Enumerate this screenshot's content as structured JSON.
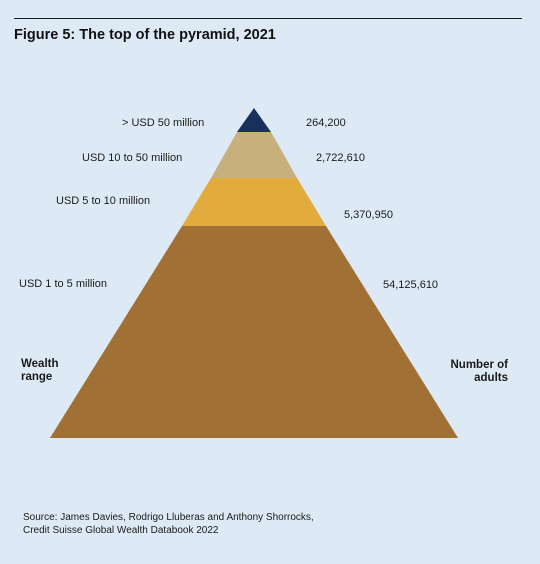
{
  "title": "Figure 5: The top of the pyramid, 2021",
  "tiers": [
    {
      "range": "> USD 50 million",
      "adults": "264,200",
      "color": "#17305e"
    },
    {
      "range": "USD 10 to 50 million",
      "adults": "2,722,610",
      "color": "#c8b07e"
    },
    {
      "range": "USD 5 to 10 million",
      "adults": "5,370,950",
      "color": "#e2ab3d"
    },
    {
      "range": "USD 1 to 5 million",
      "adults": "54,125,610",
      "color": "#a07034"
    }
  ],
  "left_axis": {
    "line1": "Wealth",
    "line2": "range"
  },
  "right_axis": {
    "line1": "Number of",
    "line2": "adults"
  },
  "source": {
    "line1": "Source: James Davies, Rodrigo Lluberas and Anthony Shorrocks,",
    "line2": "Credit Suisse Global Wealth Databook 2022"
  },
  "colors": {
    "background": "#ddeaf6"
  }
}
